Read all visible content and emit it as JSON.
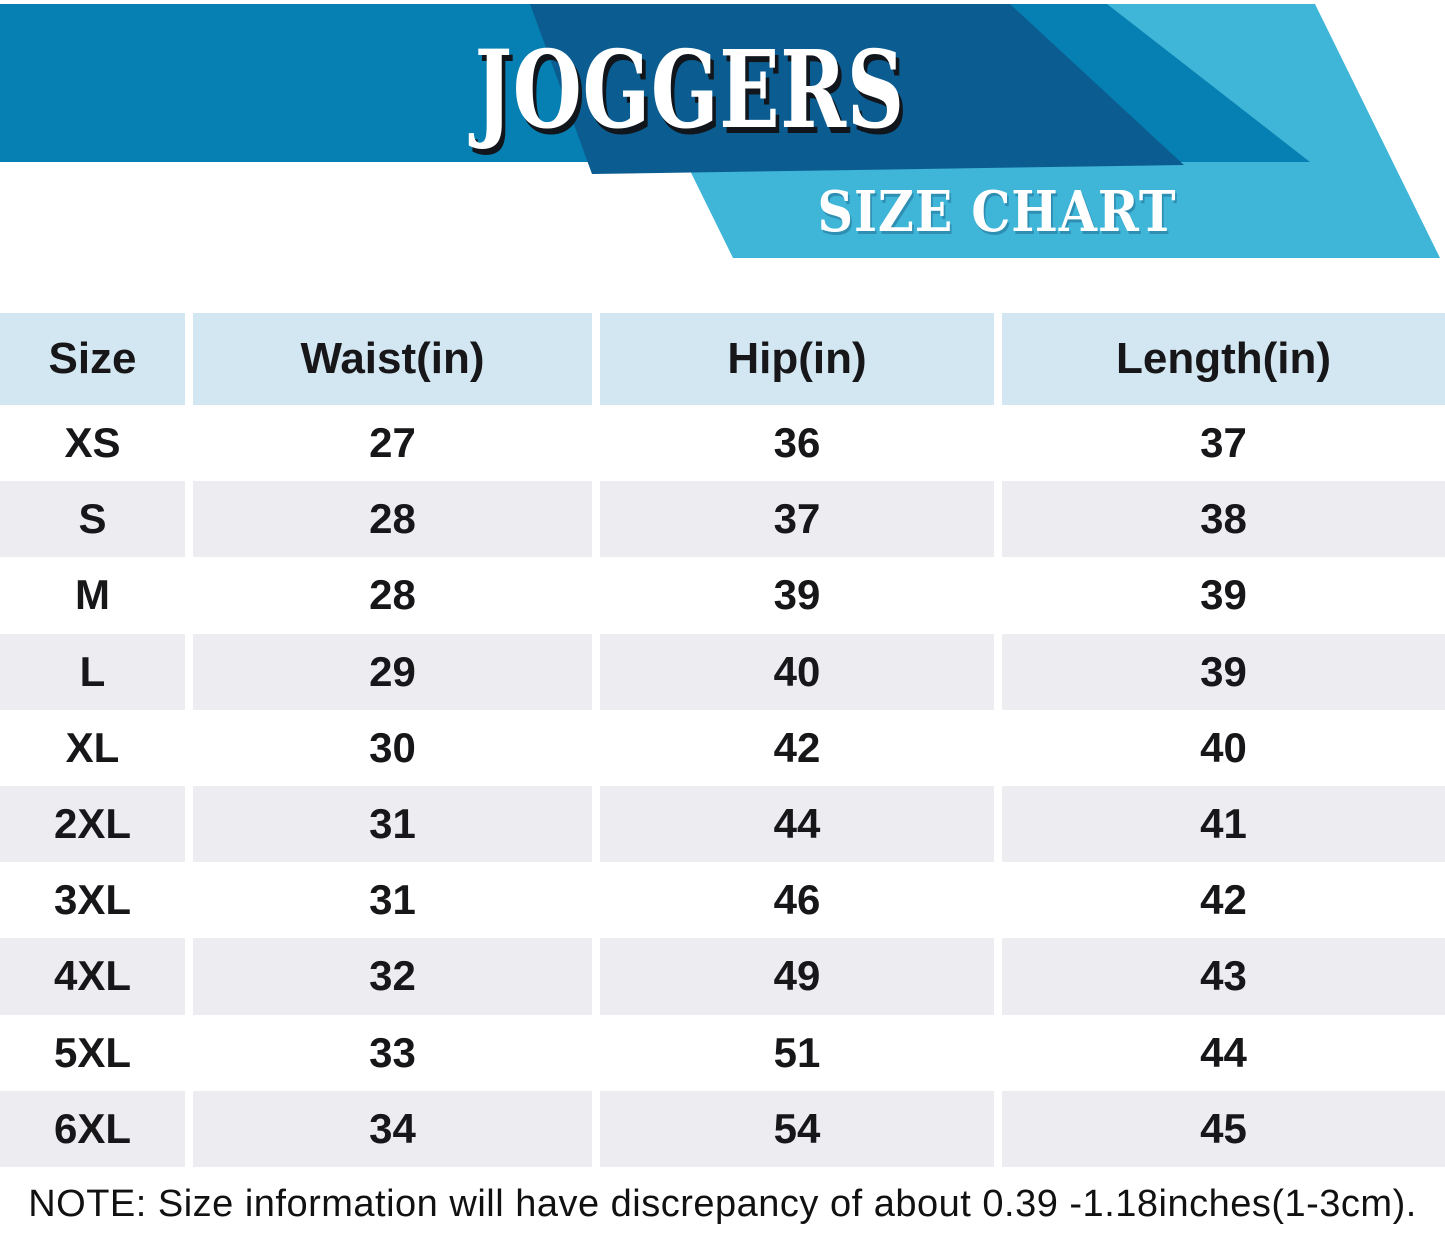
{
  "banner": {
    "title": "JOGGERS",
    "subtitle": "SIZE CHART"
  },
  "colors": {
    "band_blue": "#0680b2",
    "navy_blue": "#0b5d91",
    "light_blue": "#3fb5d8",
    "header_cell_blue": "#d3e7f2",
    "alt_row_gray": "#ececf1",
    "text_black": "#17171a"
  },
  "table": {
    "columns": [
      "Size",
      "Waist(in)",
      "Hip(in)",
      "Length(in)"
    ],
    "rows": [
      {
        "size": "XS",
        "waist": "27",
        "hip": "36",
        "length": "37"
      },
      {
        "size": "S",
        "waist": "28",
        "hip": "37",
        "length": "38"
      },
      {
        "size": "M",
        "waist": "28",
        "hip": "39",
        "length": "39"
      },
      {
        "size": "L",
        "waist": "29",
        "hip": "40",
        "length": "39"
      },
      {
        "size": "XL",
        "waist": "30",
        "hip": "42",
        "length": "40"
      },
      {
        "size": "2XL",
        "waist": "31",
        "hip": "44",
        "length": "41"
      },
      {
        "size": "3XL",
        "waist": "31",
        "hip": "46",
        "length": "42"
      },
      {
        "size": "4XL",
        "waist": "32",
        "hip": "49",
        "length": "43"
      },
      {
        "size": "5XL",
        "waist": "33",
        "hip": "51",
        "length": "44"
      },
      {
        "size": "6XL",
        "waist": "34",
        "hip": "54",
        "length": "45"
      }
    ]
  },
  "note": "NOTE: Size information will have discrepancy of about 0.39 -1.18inches(1-3cm)."
}
